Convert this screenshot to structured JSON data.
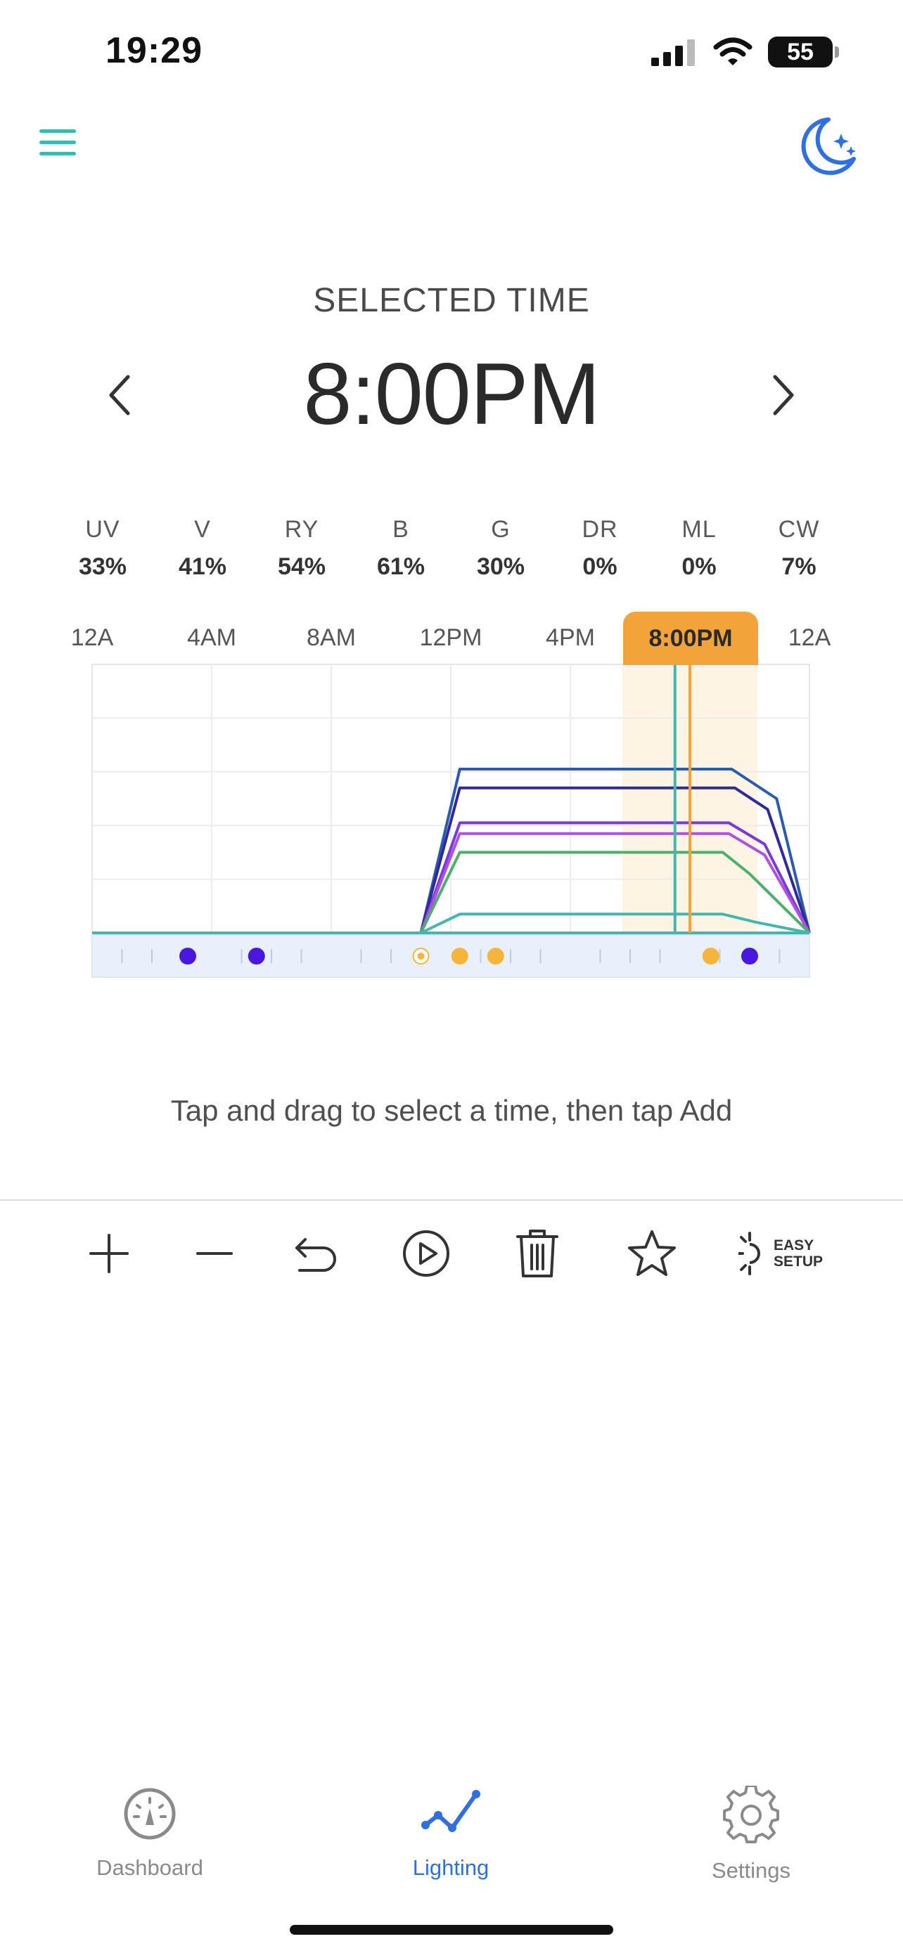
{
  "status_bar": {
    "time": "19:29",
    "battery": "55",
    "icons": [
      "signal-icon",
      "wifi-icon",
      "battery-icon"
    ]
  },
  "header": {
    "menu_icon": "hamburger-menu-icon",
    "night_icon": "moon-stars-icon",
    "accent_color": "#3ab8b6",
    "night_color": "#2f6fe0"
  },
  "selected_time": {
    "label": "SELECTED TIME",
    "value": "8:00PM",
    "prev_icon": "chevron-left-icon",
    "next_icon": "chevron-right-icon"
  },
  "channels": [
    {
      "name": "UV",
      "value": "33%"
    },
    {
      "name": "V",
      "value": "41%"
    },
    {
      "name": "RY",
      "value": "54%"
    },
    {
      "name": "B",
      "value": "61%"
    },
    {
      "name": "G",
      "value": "30%"
    },
    {
      "name": "DR",
      "value": "0%"
    },
    {
      "name": "ML",
      "value": "0%"
    },
    {
      "name": "CW",
      "value": "7%"
    }
  ],
  "chart": {
    "tick_labels": [
      "12A",
      "4AM",
      "8AM",
      "12PM",
      "4PM",
      "12A"
    ],
    "selected_label": "8:00PM",
    "selected_hour": 20,
    "selection_color": "#f2a33a"
  },
  "chart_data": {
    "type": "line",
    "x_unit": "hour",
    "xlim": [
      0,
      24
    ],
    "ylim": [
      0,
      100
    ],
    "series": [
      {
        "color": "#2a5caa",
        "points": [
          [
            11,
            0
          ],
          [
            12.3,
            61
          ],
          [
            21.4,
            61
          ],
          [
            22.9,
            50
          ],
          [
            24,
            0
          ]
        ]
      },
      {
        "color": "#2e2a9c",
        "points": [
          [
            11,
            0
          ],
          [
            12.3,
            54
          ],
          [
            21.5,
            54
          ],
          [
            22.6,
            46
          ],
          [
            24,
            0
          ]
        ]
      },
      {
        "color": "#7a3ad6",
        "points": [
          [
            11,
            0
          ],
          [
            12.3,
            41
          ],
          [
            21.3,
            41
          ],
          [
            22.5,
            33
          ],
          [
            24,
            0
          ]
        ]
      },
      {
        "color": "#b050e0",
        "points": [
          [
            11,
            0
          ],
          [
            12.3,
            37
          ],
          [
            21.3,
            37
          ],
          [
            22.5,
            29
          ],
          [
            24,
            0
          ]
        ]
      },
      {
        "color": "#4caf6a",
        "points": [
          [
            11,
            0
          ],
          [
            12.3,
            30
          ],
          [
            21.1,
            30
          ],
          [
            22,
            22
          ],
          [
            24,
            0
          ]
        ]
      },
      {
        "color": "#45b5b0",
        "points": [
          [
            11,
            0
          ],
          [
            12.3,
            7
          ],
          [
            21.1,
            7
          ],
          [
            22.2,
            4
          ],
          [
            24,
            0
          ]
        ]
      }
    ],
    "markers": [
      {
        "hour": 3.2,
        "color": "#4a17e0"
      },
      {
        "hour": 5.5,
        "color": "#4a17e0"
      },
      {
        "hour": 11,
        "color": "#f5b43a",
        "hollow": true
      },
      {
        "hour": 12.3,
        "color": "#f5b43a"
      },
      {
        "hour": 13.5,
        "color": "#f5b43a"
      },
      {
        "hour": 20.7,
        "color": "#f5b43a"
      },
      {
        "hour": 22.0,
        "color": "#4a17e0"
      }
    ],
    "current_hour": 19.5,
    "current_color": "#45b5b0"
  },
  "hint": "Tap and drag to select a time, then tap Add",
  "toolbar": {
    "items": [
      {
        "icon": "plus-icon"
      },
      {
        "icon": "minus-icon"
      },
      {
        "icon": "undo-icon"
      },
      {
        "icon": "play-icon"
      },
      {
        "icon": "trash-icon"
      },
      {
        "icon": "star-icon"
      }
    ],
    "easy_setup_line1": "EASY",
    "easy_setup_line2": "SETUP"
  },
  "tabs": [
    {
      "label": "Dashboard",
      "icon": "gauge-icon",
      "active": false
    },
    {
      "label": "Lighting",
      "icon": "lighting-graph-icon",
      "active": true
    },
    {
      "label": "Settings",
      "icon": "gear-icon",
      "active": false
    }
  ],
  "colors": {
    "active_tab": "#2f6fe0",
    "inactive_tab": "#8a8a8a"
  }
}
